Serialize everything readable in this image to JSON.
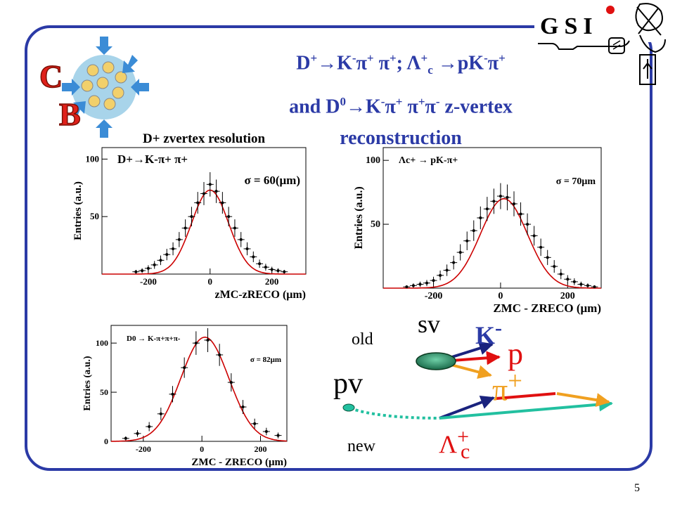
{
  "title": {
    "line1_html": "D<sup>+</sup>&rarr;K<sup>-</sup>&pi;<sup>+</sup> &pi;<sup>+</sup>; &Lambda;<sup>+</sup><sub>c</sub> &rarr;pK<sup>-</sup>&pi;<sup>+</sup>",
    "line2_html": "and D<sup>0</sup>&rarr;K<sup>-</sup>&pi;<sup>+</sup> &pi;<sup>+</sup>&pi;<sup>-</sup> z-vertex",
    "line3": "reconstruction"
  },
  "logos": {
    "cb_letter1": "C",
    "cb_letter2": "B",
    "gsi_text": "GSI"
  },
  "page_number": "5",
  "colors": {
    "title": "#2b3aa6",
    "frame": "#2b3aa6",
    "fit": "#cc0000"
  },
  "chart_data": [
    {
      "type": "scatter",
      "title": "D+ zvertex resolution",
      "decay_label": "D+→K-π+ π+",
      "sigma_label": "σ = 60(μm)",
      "ylabel": "Entries (a.u.)",
      "xlabel": "zMC-zRECO (μm)",
      "x_ticks": [
        -200,
        0,
        200
      ],
      "y_ticks": [
        50,
        100
      ],
      "xlim": [
        -350,
        310
      ],
      "ylim": [
        0,
        110
      ],
      "fit": {
        "mean": 0,
        "sigma": 60,
        "amplitude": 73
      },
      "x": [
        -240,
        -220,
        -200,
        -180,
        -160,
        -140,
        -120,
        -100,
        -80,
        -60,
        -40,
        -20,
        0,
        20,
        40,
        60,
        80,
        100,
        120,
        140,
        160,
        180,
        200,
        220,
        240
      ],
      "y": [
        2,
        3,
        5,
        8,
        12,
        17,
        22,
        30,
        40,
        50,
        62,
        70,
        78,
        72,
        62,
        50,
        40,
        30,
        22,
        15,
        9,
        6,
        4,
        3,
        2
      ]
    },
    {
      "type": "scatter",
      "title": "",
      "decay_label": "Λc+ → pK-π+",
      "sigma_label": "σ = 70μm",
      "ylabel": "Entries (a.u.)",
      "xlabel": "ZMC - ZRECO (μm)",
      "x_ticks": [
        -200,
        0,
        200
      ],
      "y_ticks": [
        50,
        100
      ],
      "xlim": [
        -350,
        300
      ],
      "ylim": [
        0,
        110
      ],
      "fit": {
        "mean": 10,
        "sigma": 70,
        "amplitude": 70
      },
      "x": [
        -280,
        -260,
        -240,
        -220,
        -200,
        -180,
        -160,
        -140,
        -120,
        -100,
        -80,
        -60,
        -40,
        -20,
        0,
        20,
        40,
        60,
        80,
        100,
        120,
        140,
        160,
        180,
        200,
        220,
        240,
        260,
        280
      ],
      "y": [
        1,
        2,
        3,
        4,
        6,
        10,
        14,
        20,
        28,
        37,
        45,
        55,
        62,
        68,
        72,
        71,
        66,
        58,
        50,
        41,
        32,
        24,
        17,
        11,
        7,
        5,
        3,
        2,
        1
      ]
    },
    {
      "type": "scatter",
      "title": "",
      "decay_label": "D0 → K-π+π+π-",
      "sigma_label": "σ = 82μm",
      "ylabel": "Entries (a.u.)",
      "xlabel": "ZMC - ZRECO (μm)",
      "x_ticks": [
        -200,
        0,
        200
      ],
      "y_ticks": [
        0,
        50,
        100
      ],
      "xlim": [
        -310,
        290
      ],
      "ylim": [
        0,
        118
      ],
      "fit": {
        "mean": 10,
        "sigma": 82,
        "amplitude": 106
      },
      "x": [
        -260,
        -220,
        -180,
        -140,
        -100,
        -60,
        -20,
        20,
        60,
        100,
        140,
        180,
        220,
        260
      ],
      "y": [
        3,
        8,
        15,
        28,
        48,
        75,
        100,
        103,
        88,
        60,
        35,
        18,
        10,
        6
      ]
    }
  ],
  "diagram": {
    "sv": "sv",
    "pv": "pv",
    "old": "old",
    "new": "new",
    "kaon_html": "K<sup>-</sup>",
    "proton": "p",
    "pion_html": "&pi;<sup>+</sup>",
    "lambda_html": "&Lambda;<sup>+</sup><sub style=\"margin-left:-12px\">c</sub>"
  }
}
